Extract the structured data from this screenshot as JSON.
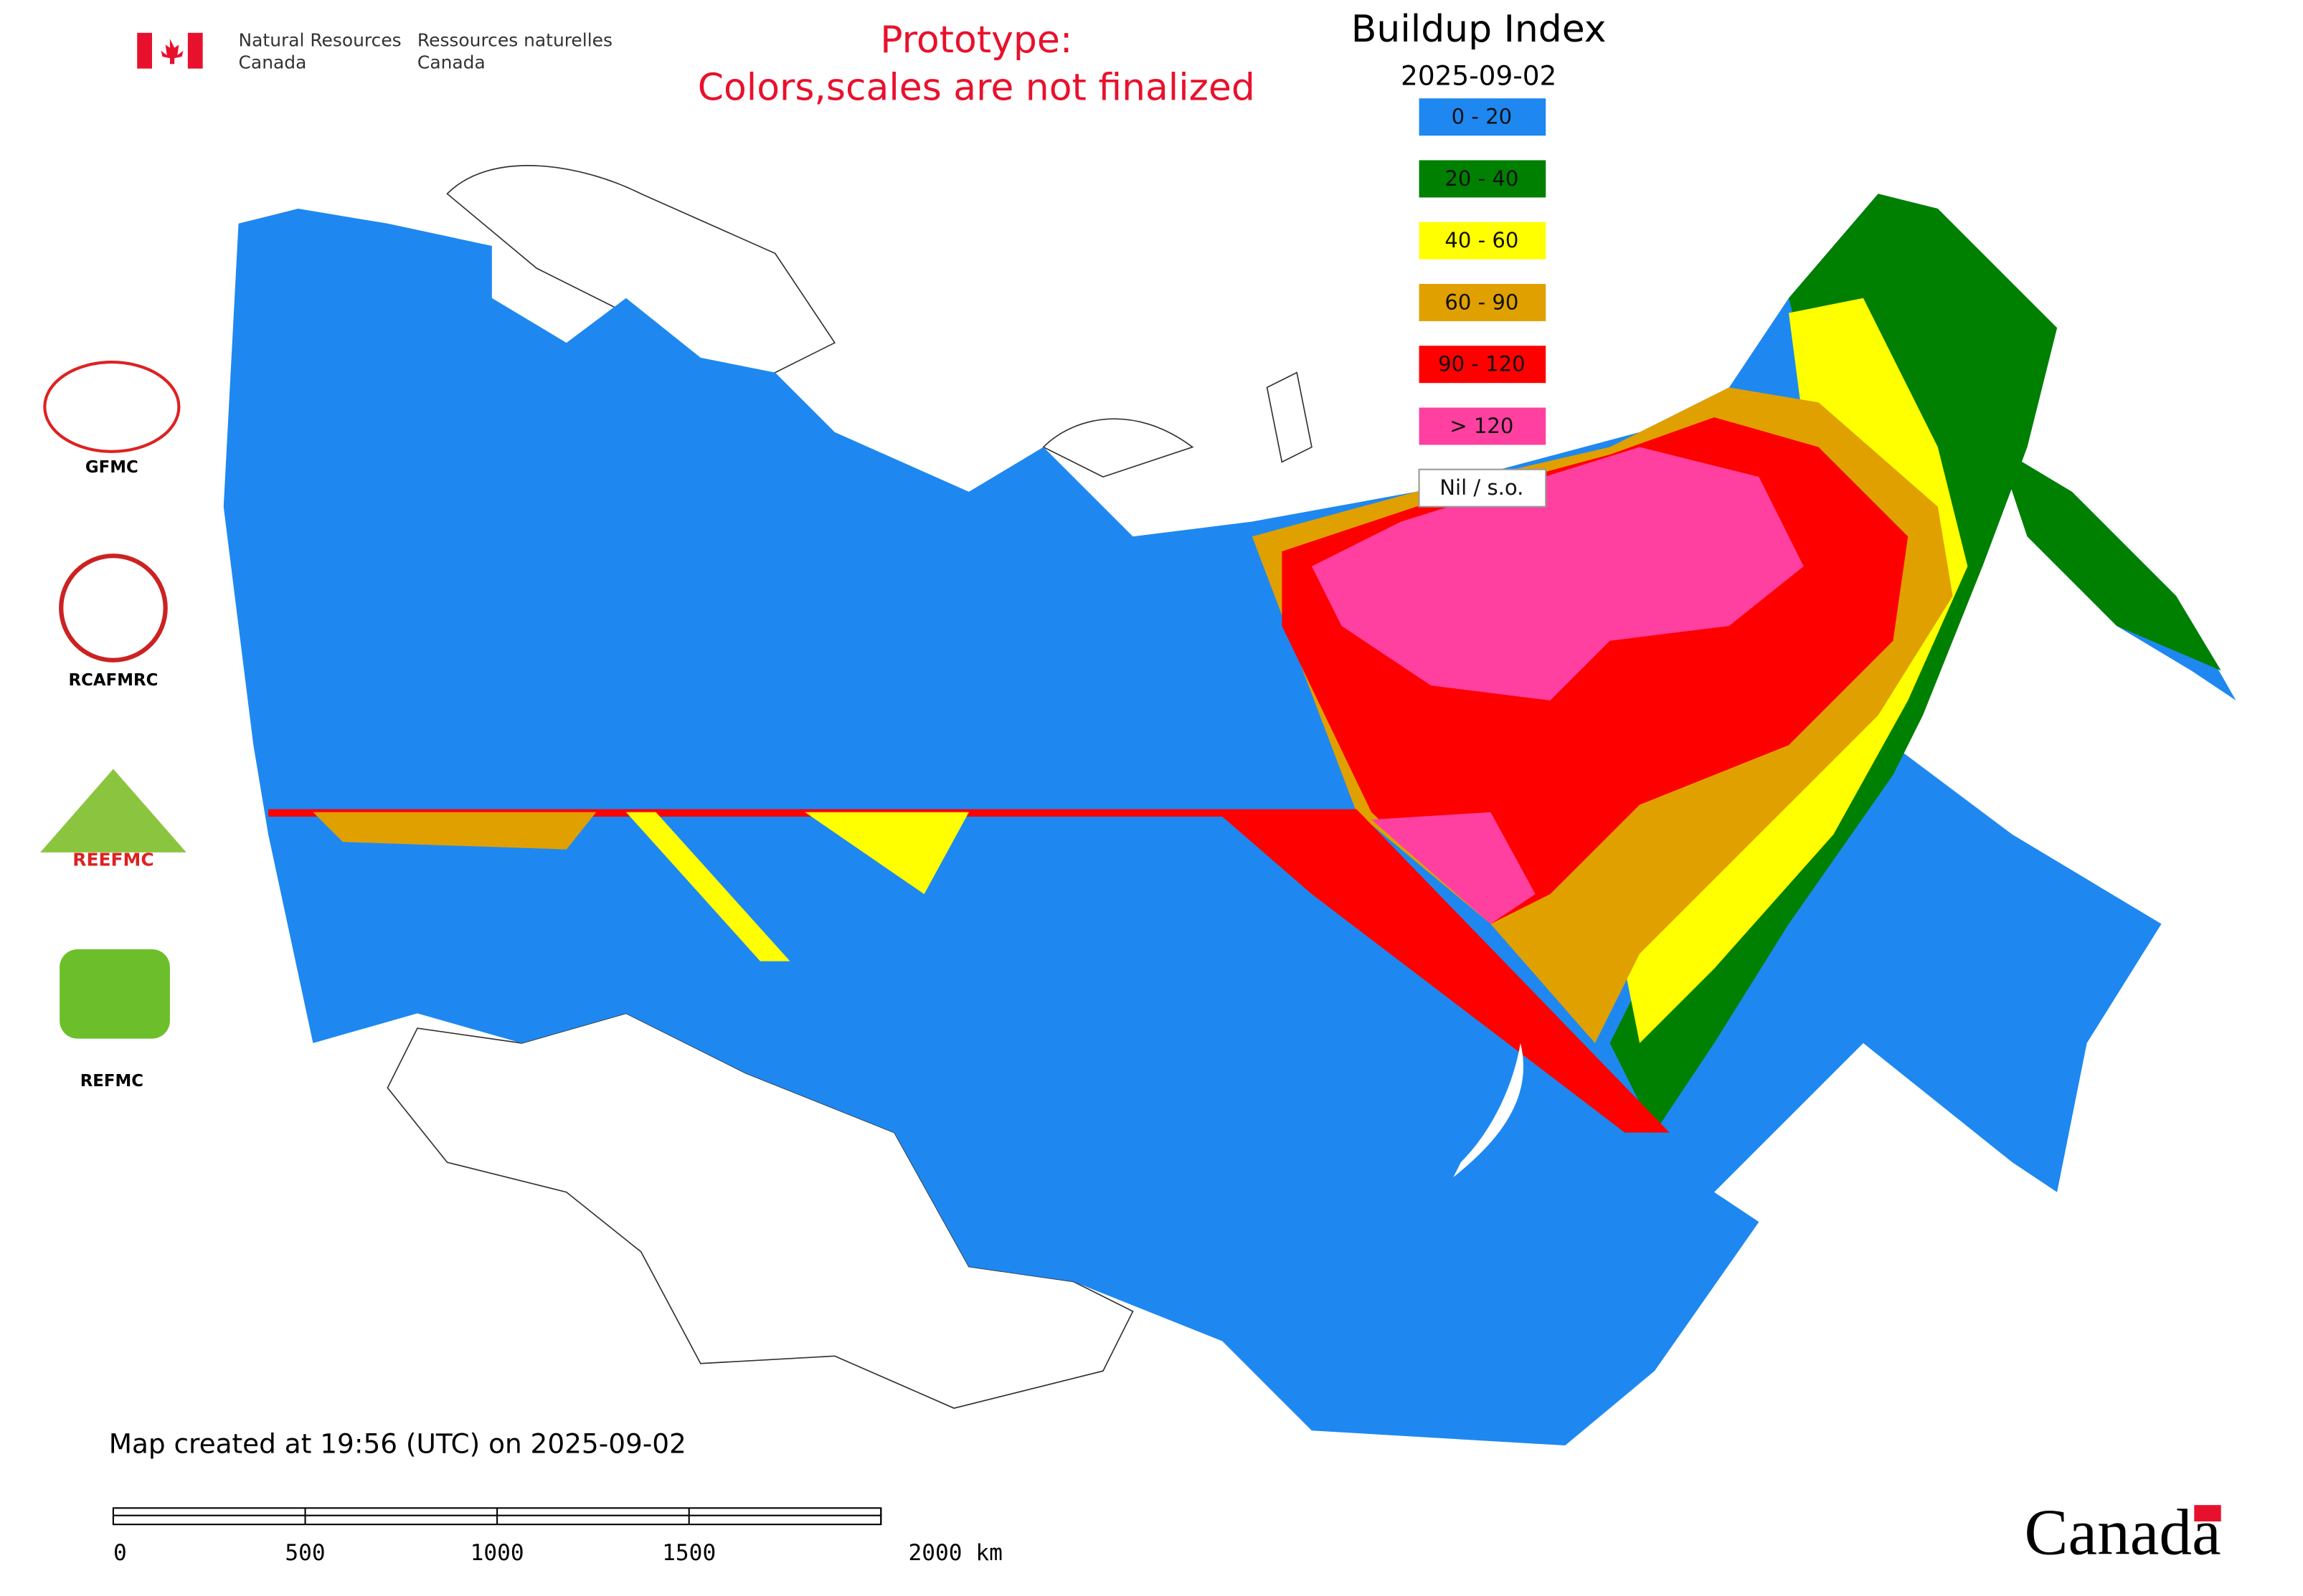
{
  "header": {
    "agency_en_1": "Natural Resources",
    "agency_en_2": "Canada",
    "agency_fr_1": "Ressources naturelles",
    "agency_fr_2": "Canada"
  },
  "notice": {
    "line1": "Prototype:",
    "line2": "Colors,scales are not finalized"
  },
  "legend": {
    "title": "Buildup Index",
    "date": "2025-09-02",
    "items": [
      {
        "label": "0 - 20",
        "color": "#1e88f0"
      },
      {
        "label": "20 - 40",
        "color": "#008000"
      },
      {
        "label": "40 - 60",
        "color": "#ffff00"
      },
      {
        "label": "60 - 90",
        "color": "#e0a000"
      },
      {
        "label": "90 - 120",
        "color": "#ff0000"
      },
      {
        "label": "> 120",
        "color": "#ff40a0"
      },
      {
        "label": "Nil / s.o.",
        "color": "#ffffff"
      }
    ]
  },
  "logos": [
    "GFMC",
    "RCAFMRC",
    "REEFMC",
    "REFMC"
  ],
  "footer": {
    "created": "Map created at 19:56 (UTC) on 2025-09-02",
    "scale_ticks": [
      "0",
      "500",
      "1000",
      "1500",
      "2000 km"
    ],
    "wordmark": "Canada"
  }
}
